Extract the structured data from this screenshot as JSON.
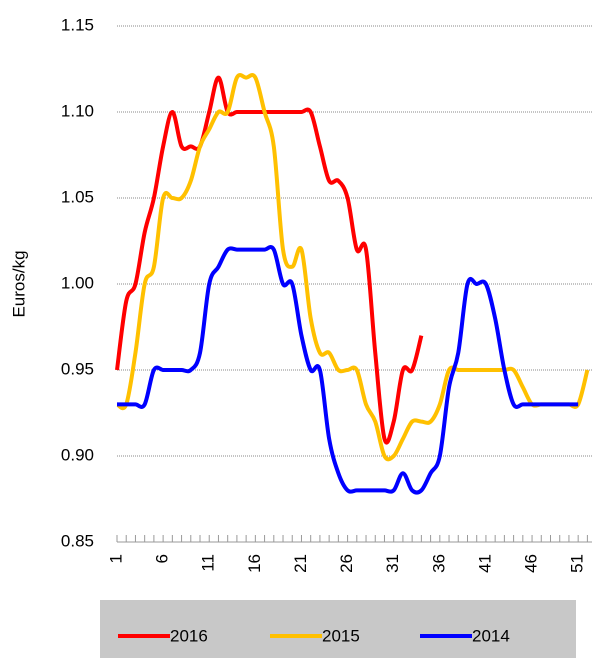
{
  "chart_data": {
    "type": "line",
    "y_label": "Euros/kg",
    "x": [
      1,
      2,
      3,
      4,
      5,
      6,
      7,
      8,
      9,
      10,
      11,
      12,
      13,
      14,
      15,
      16,
      17,
      18,
      19,
      20,
      21,
      22,
      23,
      24,
      25,
      26,
      27,
      28,
      29,
      30,
      31,
      32,
      33,
      34,
      35,
      36,
      37,
      38,
      39,
      40,
      41,
      42,
      43,
      44,
      45,
      46,
      47,
      48,
      49,
      50,
      51,
      52
    ],
    "xlim": [
      1,
      52.5
    ],
    "xticks": [
      1,
      6,
      11,
      16,
      21,
      26,
      31,
      36,
      41,
      46,
      51
    ],
    "ylim": [
      0.85,
      1.15
    ],
    "yticks": [
      0.85,
      {
        "value": 0.9,
        "label": "0.90"
      },
      0.95,
      {
        "value": 1.0,
        "label": "1.00"
      },
      1.05,
      {
        "value": 1.1,
        "label": "1.10"
      },
      1.15
    ],
    "grid": true,
    "legend": "bottom",
    "series": [
      {
        "name": "2016",
        "color": "#ff0000",
        "values": [
          0.95,
          0.99,
          1.0,
          1.03,
          1.05,
          1.08,
          1.1,
          1.08,
          1.08,
          1.08,
          1.1,
          1.12,
          1.1,
          1.1,
          1.1,
          1.1,
          1.1,
          1.1,
          1.1,
          1.1,
          1.1,
          1.1,
          1.08,
          1.06,
          1.06,
          1.05,
          1.02,
          1.02,
          0.96,
          0.91,
          0.92,
          0.95,
          0.95,
          0.97,
          null,
          null,
          null,
          null,
          null,
          null,
          null,
          null,
          null,
          null,
          null,
          null,
          null,
          null,
          null,
          null,
          null,
          null
        ]
      },
      {
        "name": "2015",
        "color": "#ffc000",
        "values": [
          0.93,
          0.93,
          0.96,
          1.0,
          1.01,
          1.05,
          1.05,
          1.05,
          1.06,
          1.08,
          1.09,
          1.1,
          1.1,
          1.12,
          1.12,
          1.12,
          1.1,
          1.08,
          1.02,
          1.01,
          1.02,
          0.98,
          0.96,
          0.96,
          0.95,
          0.95,
          0.95,
          0.93,
          0.92,
          0.9,
          0.9,
          0.91,
          0.92,
          0.92,
          0.92,
          0.93,
          0.95,
          0.95,
          0.95,
          0.95,
          0.95,
          0.95,
          0.95,
          0.95,
          0.94,
          0.93,
          0.93,
          0.93,
          0.93,
          0.93,
          0.93,
          0.95
        ]
      },
      {
        "name": "2014",
        "color": "#0000ff",
        "values": [
          0.93,
          0.93,
          0.93,
          0.93,
          0.95,
          0.95,
          0.95,
          0.95,
          0.95,
          0.96,
          1.0,
          1.01,
          1.02,
          1.02,
          1.02,
          1.02,
          1.02,
          1.02,
          1.0,
          1.0,
          0.97,
          0.95,
          0.95,
          0.91,
          0.89,
          0.88,
          0.88,
          0.88,
          0.88,
          0.88,
          0.88,
          0.89,
          0.88,
          0.88,
          0.89,
          0.9,
          0.94,
          0.96,
          1.0,
          1.0,
          1.0,
          0.98,
          0.95,
          0.93,
          0.93,
          0.93,
          0.93,
          0.93,
          0.93,
          0.93,
          0.93,
          null
        ]
      }
    ]
  }
}
